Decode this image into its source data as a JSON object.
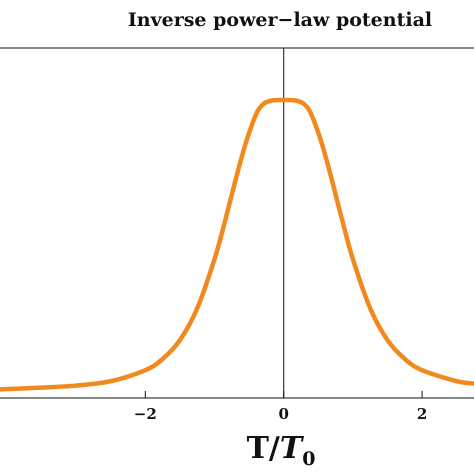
{
  "chart_data": {
    "type": "line",
    "title": "Inverse power−law potential",
    "xlabel": {
      "main": "T/",
      "italic": "T",
      "subscript": "0"
    },
    "ylabel": "",
    "xlim": [
      -4.1,
      2.75
    ],
    "ylim": [
      -0.03,
      1.18
    ],
    "xticks": [
      {
        "value": -2,
        "label": "−2"
      },
      {
        "value": 0,
        "label": "0"
      },
      {
        "value": 2,
        "label": "2"
      }
    ],
    "grid": false,
    "series": [
      {
        "color": "#F08A1E",
        "x": [
          -4.1,
          -3.5,
          -3.0,
          -2.5,
          -2.0,
          -1.75,
          -1.5,
          -1.25,
          -1.0,
          -0.85,
          -0.7,
          -0.55,
          -0.4,
          -0.3,
          -0.2,
          -0.1,
          0.0,
          0.1,
          0.2,
          0.3,
          0.4,
          0.55,
          0.7,
          0.85,
          1.0,
          1.25,
          1.5,
          1.75,
          2.0,
          2.5,
          2.75
        ],
        "y": [
          0.0,
          0.006,
          0.013,
          0.028,
          0.066,
          0.105,
          0.17,
          0.28,
          0.45,
          0.58,
          0.72,
          0.85,
          0.95,
          0.985,
          0.997,
          1.0,
          1.0,
          1.0,
          0.997,
          0.985,
          0.95,
          0.85,
          0.72,
          0.58,
          0.45,
          0.28,
          0.17,
          0.105,
          0.066,
          0.028,
          0.02
        ]
      }
    ]
  }
}
